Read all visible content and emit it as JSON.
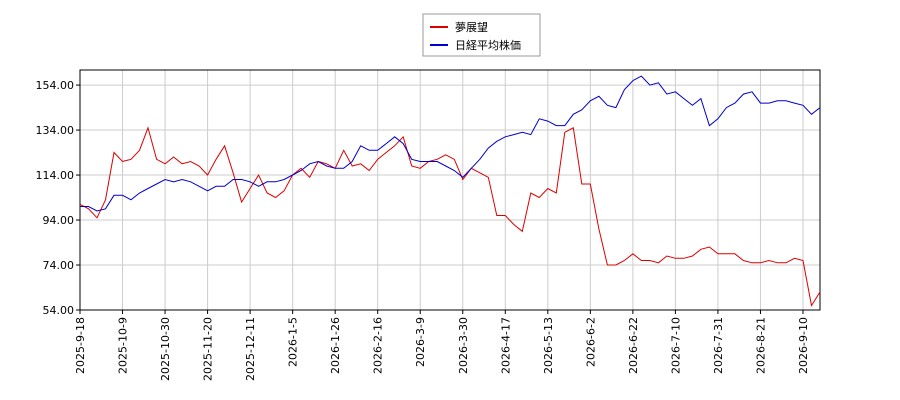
{
  "chart_data": {
    "type": "line",
    "categories": [
      "2025-9-18",
      null,
      null,
      null,
      null,
      "2025-10-9",
      null,
      null,
      null,
      null,
      "2025-10-30",
      null,
      null,
      null,
      null,
      "2025-11-20",
      null,
      null,
      null,
      null,
      "2025-12-11",
      null,
      null,
      null,
      null,
      "2026-1-5",
      null,
      null,
      null,
      null,
      "2026-1-26",
      null,
      null,
      null,
      null,
      "2026-2-16",
      null,
      null,
      null,
      null,
      "2026-3-9",
      null,
      null,
      null,
      null,
      "2026-3-30",
      null,
      null,
      null,
      null,
      "2026-4-17",
      null,
      null,
      null,
      null,
      "2026-5-13",
      null,
      null,
      null,
      null,
      "2026-6-2",
      null,
      null,
      null,
      null,
      "2026-6-22",
      null,
      null,
      null,
      null,
      "2026-7-10",
      null,
      null,
      null,
      null,
      "2026-7-31",
      null,
      null,
      null,
      null,
      "2026-8-21",
      null,
      null,
      null,
      null,
      "2026-9-10",
      null,
      null
    ],
    "series": [
      {
        "name": "夢展望",
        "color": "#dd0000",
        "values": [
          101,
          99,
          95,
          103,
          124,
          120,
          121,
          125,
          135,
          121,
          119,
          122,
          119,
          120,
          118,
          114,
          121,
          127,
          115,
          102,
          108,
          114,
          106,
          104,
          107,
          114,
          117,
          113,
          120,
          119,
          117,
          125,
          118,
          119,
          116,
          121,
          124,
          127,
          131,
          118,
          117,
          120,
          121,
          123,
          121,
          112,
          117,
          115,
          113,
          96,
          96,
          92,
          89,
          106,
          104,
          108,
          106,
          133,
          135,
          110,
          110,
          90,
          74,
          74,
          76,
          79,
          76,
          76,
          75,
          78,
          77,
          77,
          78,
          81,
          82,
          79,
          79,
          79,
          76,
          75,
          75,
          76,
          75,
          75,
          77,
          76,
          56,
          62
        ]
      },
      {
        "name": "日経平均株価",
        "color": "#0000cc",
        "values": [
          100,
          100,
          98,
          99,
          105,
          105,
          103,
          106,
          108,
          110,
          112,
          111,
          112,
          111,
          109,
          107,
          109,
          109,
          112,
          112,
          111,
          109,
          111,
          111,
          112,
          114,
          116,
          119,
          120,
          118,
          117,
          117,
          120,
          127,
          125,
          125,
          128,
          131,
          128,
          121,
          120,
          120,
          120,
          118,
          116,
          113,
          117,
          121,
          126,
          129,
          131,
          132,
          133,
          132,
          139,
          138,
          136,
          136,
          141,
          143,
          147,
          149,
          145,
          144,
          152,
          156,
          158,
          154,
          155,
          150,
          151,
          148,
          145,
          148,
          136,
          139,
          144,
          146,
          150,
          151,
          146,
          146,
          147,
          147,
          146,
          145,
          141,
          144
        ]
      }
    ],
    "ylim": [
      54,
      160.7
    ],
    "yticks": [
      {
        "value": 54,
        "label": "54.00"
      },
      {
        "value": 74,
        "label": "74.00"
      },
      {
        "value": 94,
        "label": "94.00"
      },
      {
        "value": 114,
        "label": "114.00"
      },
      {
        "value": 134,
        "label": "134.00"
      },
      {
        "value": 154,
        "label": "154.00"
      }
    ],
    "grid": true
  }
}
